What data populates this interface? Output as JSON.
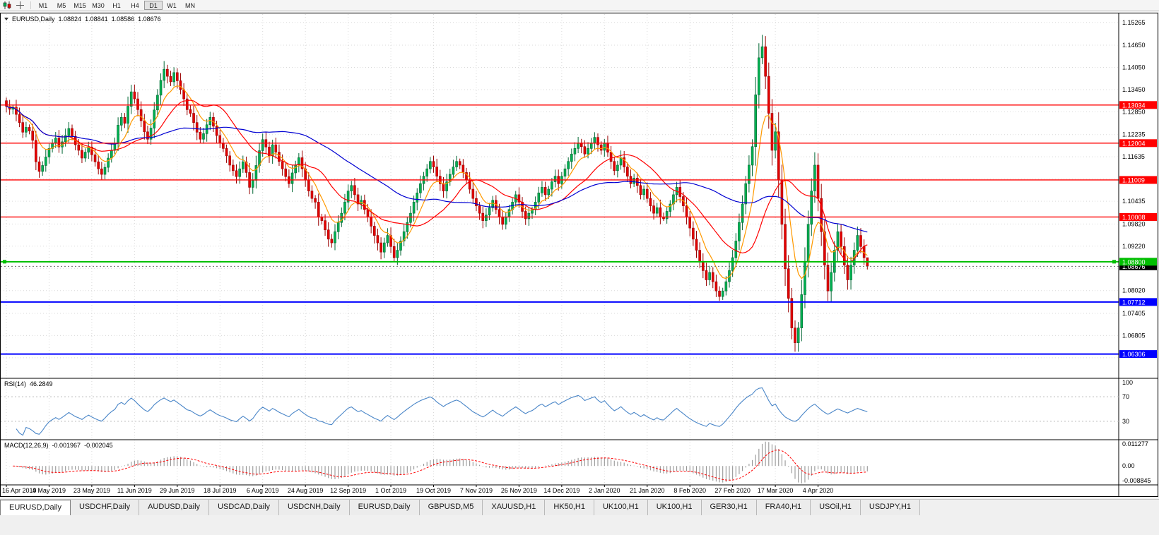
{
  "toolbar": {
    "timeframes": [
      "M1",
      "M5",
      "M15",
      "M30",
      "H1",
      "H4",
      "D1",
      "W1",
      "MN"
    ],
    "active_timeframe": "D1"
  },
  "chart_header": {
    "symbol_period": "EURUSD,Daily",
    "open": "1.08824",
    "high": "1.08841",
    "low": "1.08586",
    "close": "1.08676"
  },
  "rsi_panel": {
    "name": "RSI(14)",
    "value": "46.2849",
    "scale_labels": [
      "100",
      "70",
      "30"
    ]
  },
  "macd_panel": {
    "name": "MACD(12,26,9)",
    "main_value": "-0.001967",
    "signal_value": "-0.002045",
    "scale_labels": [
      "0.011277",
      "0.00",
      "-0.008845"
    ]
  },
  "tabs": [
    "EURUSD,Daily",
    "USDCHF,Daily",
    "AUDUSD,Daily",
    "USDCAD,Daily",
    "USDCNH,Daily",
    "EURUSD,Daily",
    "GBPUSD,M5",
    "XAUUSD,H1",
    "HK50,H1",
    "UK100,H1",
    "UK100,H1",
    "GER30,H1",
    "FRA40,H1",
    "USOil,H1",
    "USDJPY,H1"
  ],
  "active_tab_index": 0,
  "colors": {
    "background": "#FFFFFF",
    "grid": "#D9D9D9",
    "candle_up_fill": "#00B050",
    "candle_up_stroke": "#006633",
    "candle_down_fill": "#E30000",
    "candle_down_stroke": "#990000"
  },
  "chart_data": {
    "type": "candlestick",
    "title": "EURUSD,Daily",
    "x_axis_labels": [
      "16 Apr 2019",
      "4 May 2019",
      "23 May 2019",
      "11 Jun 2019",
      "29 Jun 2019",
      "18 Jul 2019",
      "6 Aug 2019",
      "24 Aug 2019",
      "12 Sep 2019",
      "1 Oct 2019",
      "19 Oct 2019",
      "7 Nov 2019",
      "26 Nov 2019",
      "14 Dec 2019",
      "2 Jan 2020",
      "21 Jan 2020",
      "8 Feb 2020",
      "27 Feb 2020",
      "17 Mar 2020",
      "4 Apr 2020"
    ],
    "bars_per_label": 13,
    "price_axis": {
      "min": 1.0565,
      "max": 1.1549,
      "tick_values": [
        1.15265,
        1.1465,
        1.1405,
        1.1345,
        1.1285,
        1.12235,
        1.11635,
        1.10435,
        1.0982,
        1.0922,
        1.0802,
        1.07405,
        1.06805
      ],
      "tick_labels": [
        "1.15265",
        "1.14650",
        "1.14050",
        "1.13450",
        "1.12850",
        "1.12235",
        "1.11635",
        "1.10435",
        "1.09820",
        "1.09220",
        "1.08020",
        "1.07405",
        "1.06805"
      ],
      "grid_values": [
        1.15265,
        1.1465,
        1.1405,
        1.1345,
        1.1285,
        1.12235,
        1.11635,
        1.11035,
        1.10435,
        1.0982,
        1.0922,
        1.0862,
        1.0802,
        1.07405,
        1.06805,
        1.06205
      ]
    },
    "first_open": 1.1315,
    "closes": [
      1.13,
      1.1292,
      1.1298,
      1.1278,
      1.1256,
      1.123,
      1.1243,
      1.1233,
      1.1208,
      1.115,
      1.1124,
      1.114,
      1.1163,
      1.1186,
      1.12,
      1.1214,
      1.119,
      1.1204,
      1.1221,
      1.124,
      1.1219,
      1.1196,
      1.1181,
      1.116,
      1.1176,
      1.119,
      1.1169,
      1.115,
      1.1131,
      1.1116,
      1.1135,
      1.116,
      1.1181,
      1.12,
      1.1249,
      1.127,
      1.1254,
      1.13,
      1.1339,
      1.132,
      1.1291,
      1.1261,
      1.1231,
      1.1211,
      1.1241,
      1.129,
      1.133,
      1.137,
      1.14,
      1.1381,
      1.1366,
      1.1391,
      1.1369,
      1.1345,
      1.132,
      1.1291,
      1.1281,
      1.1256,
      1.123,
      1.1211,
      1.1226,
      1.125,
      1.127,
      1.1246,
      1.1221,
      1.12,
      1.1186,
      1.1166,
      1.1141,
      1.1126,
      1.111,
      1.1131,
      1.115,
      1.1121,
      1.1081,
      1.11,
      1.114,
      1.118,
      1.121,
      1.119,
      1.1166,
      1.1196,
      1.1176,
      1.1151,
      1.1131,
      1.111,
      1.1091,
      1.112,
      1.1141,
      1.1161,
      1.1131,
      1.1101,
      1.1071,
      1.1051,
      1.1041,
      1.1001,
      1.0991,
      1.0966,
      1.0941,
      1.0931,
      1.0961,
      1.0986,
      1.1011,
      1.1041,
      1.1071,
      1.1086,
      1.1061,
      1.1036,
      1.1046,
      1.1021,
      1.1001,
      1.0976,
      1.0951,
      1.0931,
      1.0906,
      1.0931,
      1.0951,
      1.0921,
      1.0891,
      1.0911,
      1.0936,
      1.0961,
      1.0986,
      1.1011,
      1.1041,
      1.1066,
      1.1091,
      1.1111,
      1.1131,
      1.1151,
      1.1136,
      1.1111,
      1.1091,
      1.1071,
      1.1096,
      1.1116,
      1.1136,
      1.1151,
      1.1141,
      1.1121,
      1.1101,
      1.1076,
      1.1051,
      1.1031,
      1.1011,
      1.0991,
      1.1006,
      1.1026,
      1.1046,
      1.1021,
      1.1001,
      1.0981,
      1.1001,
      1.1021,
      1.1041,
      1.1061,
      1.1041,
      1.1016,
      1.0996,
      1.1011,
      1.1021,
      1.1041,
      1.1066,
      1.1081,
      1.1061,
      1.1076,
      1.1096,
      1.1111,
      1.1091,
      1.1111,
      1.1131,
      1.1151,
      1.1171,
      1.1186,
      1.1201,
      1.1191,
      1.1171,
      1.1186,
      1.1201,
      1.1216,
      1.1196,
      1.1181,
      1.1201,
      1.1176,
      1.1151,
      1.1126,
      1.1141,
      1.1161,
      1.1136,
      1.1111,
      1.1091,
      1.1106,
      1.1086,
      1.1061,
      1.1076,
      1.1051,
      1.1031,
      1.1011,
      1.1026,
      1.1001,
      1.0996,
      1.1016,
      1.1036,
      1.1061,
      1.1081,
      1.1056,
      1.1031,
      1.1001,
      1.0971,
      1.0941,
      1.0911,
      1.0881,
      1.0856,
      1.0831,
      1.0851,
      1.0826,
      1.0801,
      1.0786,
      1.0801,
      1.0826,
      1.0856,
      1.0891,
      1.0936,
      1.0986,
      1.1036,
      1.1091,
      1.1141,
      1.1191,
      1.1331,
      1.1431,
      1.1461,
      1.1381,
      1.1281,
      1.1181,
      1.1231,
      1.1101,
      1.0981,
      1.0861,
      1.0781,
      1.0701,
      1.0661,
      1.0701,
      1.0791,
      1.0881,
      1.0981,
      1.1071,
      1.1141,
      1.1051,
      1.0961,
      1.0871,
      1.0801,
      1.0851,
      1.0911,
      1.0961,
      1.0921,
      1.0871,
      1.0831,
      1.0871,
      1.0911,
      1.0951,
      1.0921,
      1.0891,
      1.0868
    ],
    "wick_overrides": {
      "118": {
        "l": 1.0879
      },
      "230": {
        "h": 1.1493
      },
      "240": {
        "l": 1.0637
      },
      "262": {
        "h": 1.0884,
        "l": 1.0859
      }
    },
    "horizontal_levels": [
      {
        "value": 1.13034,
        "label": "1.13034",
        "color": "#FF0000",
        "width": 1.4,
        "handles": false
      },
      {
        "value": 1.12004,
        "label": "1.12004",
        "color": "#FF0000",
        "width": 1.4,
        "handles": false
      },
      {
        "value": 1.11009,
        "label": "1.11009",
        "color": "#FF0000",
        "width": 1.4,
        "handles": false
      },
      {
        "value": 1.10008,
        "label": "1.10008",
        "color": "#FF0000",
        "width": 1.4,
        "handles": false
      },
      {
        "value": 1.088,
        "label": "1.08800",
        "color": "#00BE00",
        "width": 2,
        "handles": true
      },
      {
        "value": 1.07712,
        "label": "1.07712",
        "color": "#0000FF",
        "width": 2,
        "handles": false
      },
      {
        "value": 1.06306,
        "label": "1.06306",
        "color": "#0000FF",
        "width": 2,
        "handles": false
      }
    ],
    "current_price": {
      "value": 1.08676,
      "label": "1.08676"
    },
    "moving_averages": [
      {
        "type": "ema",
        "period": 8,
        "color": "#FF9900"
      },
      {
        "type": "sma",
        "period": 20,
        "color": "#FF0000"
      },
      {
        "type": "sma",
        "period": 55,
        "color": "#0000D2"
      }
    ],
    "rsi": {
      "period": 14,
      "color": "#4A86C8",
      "levels": [
        70,
        30
      ]
    },
    "macd": {
      "fast": 12,
      "slow": 26,
      "signal": 9,
      "hist_color": "#969696",
      "signal_color": "#FF0000"
    }
  }
}
